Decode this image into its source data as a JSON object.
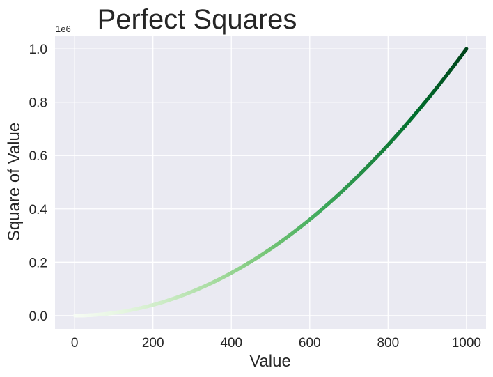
{
  "chart_data": {
    "type": "scatter",
    "title": "Perfect Squares",
    "xlabel": "Value",
    "ylabel": "Square of Value",
    "y_offset_label": "1e6",
    "xlim": [
      -50,
      1050
    ],
    "ylim": [
      -50000,
      1050000
    ],
    "x_ticks": [
      0,
      200,
      400,
      600,
      800,
      1000
    ],
    "y_ticks": [
      0,
      200000,
      400000,
      600000,
      800000,
      1000000
    ],
    "x_tick_labels": [
      "0",
      "200",
      "400",
      "600",
      "800",
      "1000"
    ],
    "y_tick_labels": [
      "0.0",
      "0.2",
      "0.4",
      "0.6",
      "0.8",
      "1.0"
    ],
    "x_range": [
      1,
      1000
    ],
    "formula": "y = x^2",
    "colormap": [
      "#f7fcf5",
      "#e5f5e0",
      "#c7e9c0",
      "#a1d99b",
      "#74c476",
      "#41ab5d",
      "#238b45",
      "#006d2c",
      "#00441b"
    ],
    "background_color": "#eaeaf2",
    "grid_color": "#ffffff",
    "grid": true
  }
}
